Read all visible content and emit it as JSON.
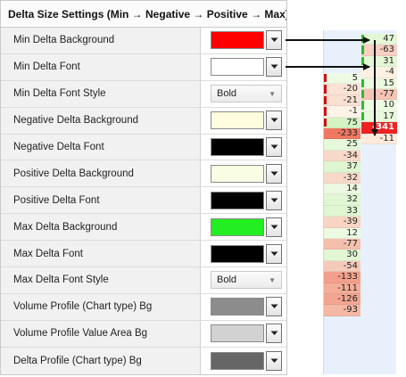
{
  "header": {
    "title": "Delta Size Settings (Min → Negative → Positive → Max)"
  },
  "rows": [
    {
      "label": "Min Delta Background",
      "type": "color",
      "color": "#ff0000"
    },
    {
      "label": "Min Delta Font",
      "type": "color",
      "color": "#ffffff"
    },
    {
      "label": "Min Delta Font Style",
      "type": "font",
      "value": "Bold"
    },
    {
      "label": "Negative Delta Background",
      "type": "color",
      "color": "#fffbdf"
    },
    {
      "label": "Negative Delta Font",
      "type": "color",
      "color": "#000000"
    },
    {
      "label": "Positive Delta Background",
      "type": "color",
      "color": "#f8fde4"
    },
    {
      "label": "Positive Delta Font",
      "type": "color",
      "color": "#000000"
    },
    {
      "label": "Max Delta Background",
      "type": "color",
      "color": "#22ee22"
    },
    {
      "label": "Max Delta Font",
      "type": "color",
      "color": "#000000"
    },
    {
      "label": "Max Delta Font Style",
      "type": "font",
      "value": "Bold"
    },
    {
      "label": "Volume Profile (Chart type) Bg",
      "type": "color",
      "color": "#8c8c8c"
    },
    {
      "label": "Volume Profile Value Area Bg",
      "type": "color",
      "color": "#d2d2d2"
    },
    {
      "label": "Delta Profile (Chart type) Bg",
      "type": "color",
      "color": "#666666"
    }
  ],
  "preview": {
    "right_column": [
      {
        "value": "47",
        "bg": "#e4f7d6",
        "bar": "#2dbb2d"
      },
      {
        "value": "-63",
        "bg": "#f7cfc3",
        "bar": "#2dbb2d"
      },
      {
        "value": "31",
        "bg": "#e4f7d6",
        "bar": "#2dbb2d"
      },
      {
        "value": "-4",
        "bg": "#fdf1e3",
        "bar": ""
      },
      {
        "value": "15",
        "bg": "#eaf9df",
        "bar": "#2dbb2d"
      },
      {
        "value": "-77",
        "bg": "#f6c4b4",
        "bar": "#2dbb2d"
      },
      {
        "value": "10",
        "bg": "#eefbe4",
        "bar": "#2dbb2d"
      },
      {
        "value": "17",
        "bg": "#e8f8dc",
        "bar": "#2dbb2d"
      },
      {
        "value": "-341",
        "bg": "#ee2222",
        "bar": "",
        "bold": true,
        "color": "#ffffff"
      },
      {
        "value": "-11",
        "bg": "#fcebdc",
        "bar": ""
      }
    ],
    "left_column": [
      {
        "value": "5",
        "bg": "#eefbe4",
        "bar": "#cc1111"
      },
      {
        "value": "-20",
        "bg": "#fae3d5",
        "bar": "#cc1111"
      },
      {
        "value": "-21",
        "bg": "#fae0d2",
        "bar": "#cc1111"
      },
      {
        "value": "-1",
        "bg": "#fdf3e8",
        "bar": "#cc1111"
      },
      {
        "value": "75",
        "bg": "#d4f3c2",
        "bar": "#cc1111"
      },
      {
        "value": "-233",
        "bg": "#f07862",
        "bar": ""
      },
      {
        "value": "25",
        "bg": "#e6f8da",
        "bar": ""
      },
      {
        "value": "-34",
        "bg": "#f8d8c8",
        "bar": ""
      },
      {
        "value": "37",
        "bg": "#dff5d0",
        "bar": ""
      },
      {
        "value": "-32",
        "bg": "#f8d9c9",
        "bar": ""
      },
      {
        "value": "14",
        "bg": "#ecf9e2",
        "bar": ""
      },
      {
        "value": "32",
        "bg": "#e1f6d3",
        "bar": ""
      },
      {
        "value": "33",
        "bg": "#e0f6d2",
        "bar": ""
      },
      {
        "value": "-39",
        "bg": "#f7d4c3",
        "bar": ""
      },
      {
        "value": "12",
        "bg": "#edfae3",
        "bar": ""
      },
      {
        "value": "-77",
        "bg": "#f5bfae",
        "bar": ""
      },
      {
        "value": "30",
        "bg": "#e2f6d4",
        "bar": ""
      },
      {
        "value": "-54",
        "bg": "#f6cab9",
        "bar": ""
      },
      {
        "value": "-133",
        "bg": "#f2a08b",
        "bar": ""
      },
      {
        "value": "-111",
        "bg": "#f3ad98",
        "bar": ""
      },
      {
        "value": "-126",
        "bg": "#f2a590",
        "bar": ""
      },
      {
        "value": "-93",
        "bg": "#f4b8a5",
        "bar": ""
      }
    ]
  }
}
